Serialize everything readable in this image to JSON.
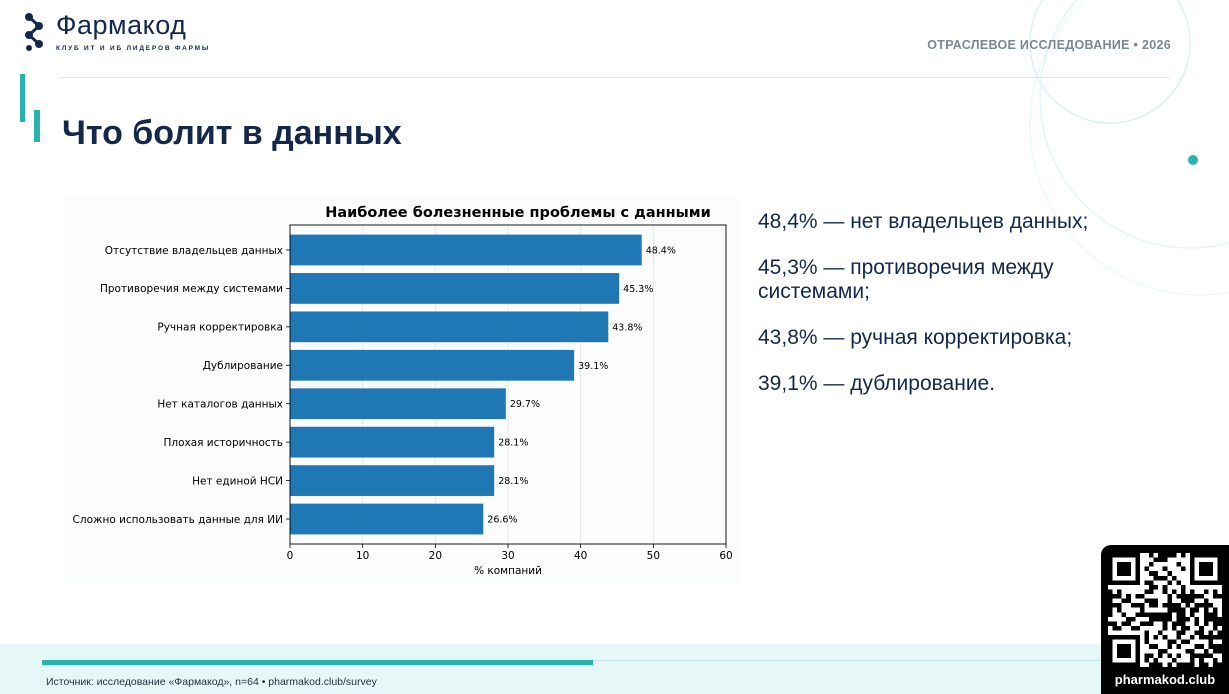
{
  "brand": {
    "name": "Фармакод",
    "tagline": "КЛУБ ИТ И ИБ ЛИДЕРОВ ФАРМЫ",
    "accent_color": "#28b3ad",
    "primary_color": "#14284b"
  },
  "header": {
    "report_label": "ОТРАСЛЕВОЕ ИССЛЕДОВАНИЕ • 2026"
  },
  "page": {
    "title": "Что болит в данных"
  },
  "chart_data": {
    "type": "bar",
    "orientation": "horizontal",
    "title": "Наиболее болезненные проблемы с данными",
    "xlabel": "% компаний",
    "ylabel": "",
    "categories": [
      "Отсутствие владельцев данных",
      "Противоречия между системами",
      "Ручная корректировка",
      "Дублирование",
      "Нет каталогов данных",
      "Плохая историчность",
      "Нет единой НСИ",
      "Сложно использовать данные для ИИ"
    ],
    "values": [
      48.4,
      45.3,
      43.8,
      39.1,
      29.7,
      28.1,
      28.1,
      26.6
    ],
    "value_labels": [
      "48.4%",
      "45.3%",
      "43.8%",
      "39.1%",
      "29.7%",
      "28.1%",
      "28.1%",
      "26.6%"
    ],
    "xlim": [
      0,
      60
    ],
    "xticks": [
      0,
      10,
      20,
      30,
      40,
      50,
      60
    ],
    "bar_color": "#1f77b4",
    "grid": "x"
  },
  "highlights": [
    "48,4% — нет владельцев данных;",
    "45,3% — противоречия между системами;",
    "43,8% — ручная корректировка;",
    "39,1% — дублирование."
  ],
  "footer": {
    "source": "Источник: исследование «Фармакод», n=64 • pharmakod.club/survey"
  },
  "qr": {
    "caption": "pharmakod.club",
    "icon": "qr-code-icon"
  }
}
